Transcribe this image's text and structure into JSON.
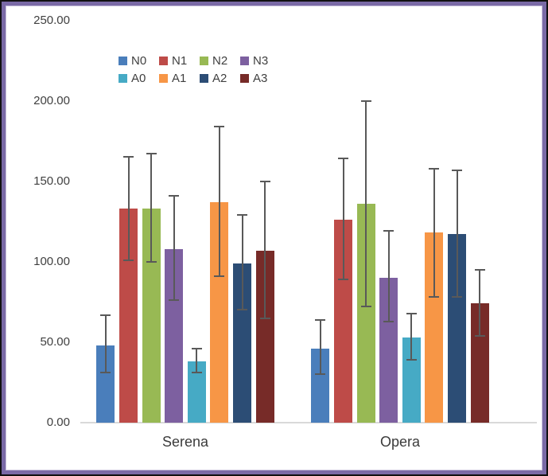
{
  "window": {
    "border_outer_color": "#111111",
    "border_purple_color": "#7a6aa6",
    "border_highlight_color": "#c9c2dd",
    "background_color": "#ffffff"
  },
  "chart_data": {
    "type": "bar",
    "title": "",
    "xlabel": "",
    "ylabel": "",
    "categories": [
      "Serena",
      "Opera"
    ],
    "series": [
      {
        "name": "N0",
        "color": "#4a7ebb",
        "values": [
          48,
          46
        ],
        "err_high": [
          67,
          64
        ],
        "err_low": [
          31,
          30
        ]
      },
      {
        "name": "N1",
        "color": "#be4b48",
        "values": [
          133,
          126
        ],
        "err_high": [
          165,
          164
        ],
        "err_low": [
          101,
          89
        ]
      },
      {
        "name": "N2",
        "color": "#98b954",
        "values": [
          133,
          136
        ],
        "err_high": [
          167,
          200
        ],
        "err_low": [
          100,
          72
        ]
      },
      {
        "name": "N3",
        "color": "#7d60a0",
        "values": [
          108,
          90
        ],
        "err_high": [
          141,
          119
        ],
        "err_low": [
          76,
          63
        ]
      },
      {
        "name": "A0",
        "color": "#46aac5",
        "values": [
          38,
          53
        ],
        "err_high": [
          46,
          68
        ],
        "err_low": [
          31,
          39
        ]
      },
      {
        "name": "A1",
        "color": "#f79646",
        "values": [
          137,
          118
        ],
        "err_high": [
          184,
          158
        ],
        "err_low": [
          91,
          78
        ]
      },
      {
        "name": "A2",
        "color": "#2c4d75",
        "values": [
          99,
          117
        ],
        "err_high": [
          129,
          157
        ],
        "err_low": [
          70,
          78
        ]
      },
      {
        "name": "A3",
        "color": "#772b28",
        "values": [
          107,
          74
        ],
        "err_high": [
          150,
          95
        ],
        "err_low": [
          65,
          54
        ]
      }
    ],
    "y_ticks": [
      "250.00",
      "200.00",
      "150.00",
      "100.00",
      "50.00",
      "0.00"
    ],
    "ylim": [
      0,
      250
    ],
    "grid": "off",
    "legend_position": "top-center-two-rows",
    "legend_rows": [
      [
        "N0",
        "N1",
        "N2",
        "N3"
      ],
      [
        "A0",
        "A1",
        "A2",
        "A3"
      ]
    ],
    "error_bar_color": "#595959",
    "axis_line_color": "#d9d9d9",
    "tick_label_color": "#3f3f3f"
  }
}
